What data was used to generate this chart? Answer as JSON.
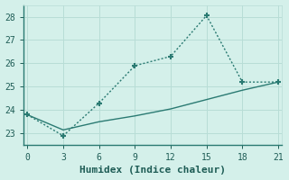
{
  "xlabel": "Humidex (Indice chaleur)",
  "x": [
    0,
    3,
    6,
    9,
    12,
    15,
    18,
    21
  ],
  "line1_y": [
    23.8,
    22.9,
    24.3,
    25.9,
    26.3,
    28.05,
    25.2,
    25.2
  ],
  "line2_y": [
    23.8,
    23.15,
    23.5,
    23.75,
    24.05,
    24.45,
    24.85,
    25.2
  ],
  "line_color": "#2a7a72",
  "bg_color": "#d4f0ea",
  "grid_color": "#b8ddd6",
  "spine_color": "#2a7a72",
  "ylim": [
    22.5,
    28.5
  ],
  "xlim": [
    -0.3,
    21.3
  ],
  "yticks": [
    23,
    24,
    25,
    26,
    27,
    28
  ],
  "xticks": [
    0,
    3,
    6,
    9,
    12,
    15,
    18,
    21
  ],
  "marker": "+",
  "markersize": 5,
  "markeredgewidth": 1.5,
  "linewidth": 1.0,
  "font_color": "#1e5c55",
  "tick_fontsize": 7,
  "xlabel_fontsize": 8
}
